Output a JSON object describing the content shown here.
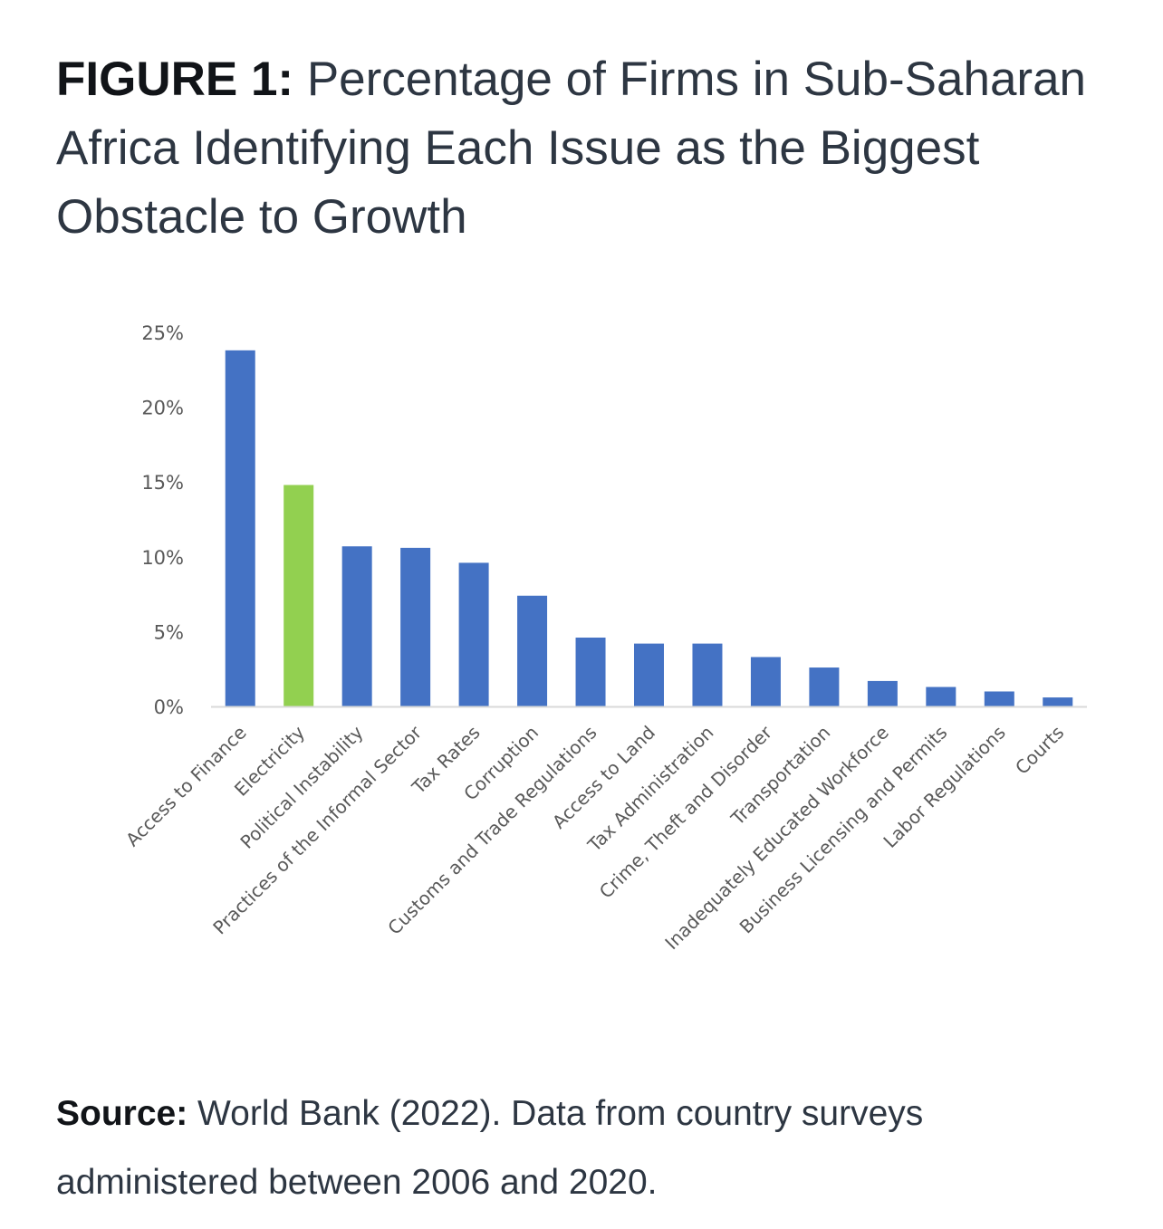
{
  "figure": {
    "label": "FIGURE 1:",
    "title": "Percentage of Firms in Sub-Saharan Africa Identifying Each Issue as the Biggest Obstacle to Growth"
  },
  "source": {
    "label": "Source:",
    "text": "World Bank (2022). Data from country surveys administered between 2006 and 2020."
  },
  "chart_data": {
    "type": "bar",
    "title": "Percentage of Firms in Sub-Saharan Africa Identifying Each Issue as the Biggest Obstacle to Growth",
    "xlabel": "",
    "ylabel": "",
    "ylim": [
      0,
      25
    ],
    "yticks": [
      {
        "value": 0,
        "label": "0%"
      },
      {
        "value": 5,
        "label": "5%"
      },
      {
        "value": 10,
        "label": "10%"
      },
      {
        "value": 15,
        "label": "15%"
      },
      {
        "value": 20,
        "label": "20%"
      },
      {
        "value": 25,
        "label": "25%"
      }
    ],
    "grid": false,
    "categories": [
      "Access to Finance",
      "Electricity",
      "Political Instability",
      "Practices of the Informal Sector",
      "Tax Rates",
      "Corruption",
      "Customs and Trade Regulations",
      "Access to Land",
      "Tax Administration",
      "Crime, Theft and Disorder",
      "Transportation",
      "Inadequately Educated Workforce",
      "Business Licensing and Permits",
      "Labor Regulations",
      "Courts"
    ],
    "values": [
      23.8,
      14.8,
      10.7,
      10.6,
      9.6,
      7.4,
      4.6,
      4.2,
      4.2,
      3.3,
      2.6,
      1.7,
      1.3,
      1.0,
      0.6
    ],
    "highlight_index": 1,
    "colors": {
      "bar": "#4472C4",
      "highlight": "#92D050",
      "axis": "#D9D9D9",
      "text": "#595959"
    }
  }
}
